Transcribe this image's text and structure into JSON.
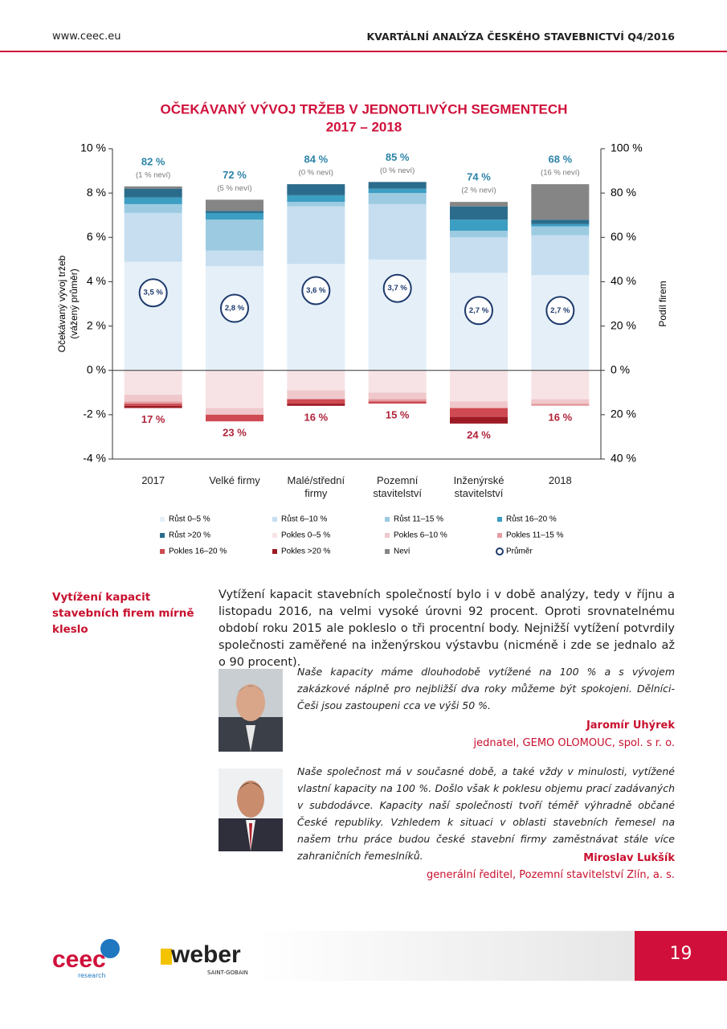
{
  "header": {
    "url": "www.ceec.eu",
    "title": "KVARTÁLNÍ ANALÝZA ČESKÉHO STAVEBNICTVÍ Q4/2016"
  },
  "chart_data": {
    "type": "stacked_bar",
    "title": "OČEKÁVANÝ VÝVOJ TRŽEB V JEDNOTLIVÝCH SEGMENTECH",
    "subtitle": "2017 – 2018",
    "ylabel": [
      "Očekávaný vývoj tržeb",
      "(vážený průměr)"
    ],
    "y2label": "Podíl firem",
    "categories": [
      "2017",
      "Velké firmy",
      "Malé/střední firmy",
      "Pozemní stavitelství",
      "Inženýrské stavitelství",
      "2018"
    ],
    "ylim": [
      -4,
      10
    ],
    "yticks": [
      {
        "value": -4,
        "label": "-4 %"
      },
      {
        "value": -2,
        "label": "-2 %"
      },
      {
        "value": 0,
        "label": "0 %"
      },
      {
        "value": 2,
        "label": "2 %"
      },
      {
        "value": 4,
        "label": "4 %"
      },
      {
        "value": 6,
        "label": "6 %"
      },
      {
        "value": 8,
        "label": "8 %"
      },
      {
        "value": 10,
        "label": "10 %"
      }
    ],
    "y2lim": [
      -40,
      100
    ],
    "y2ticks": [
      {
        "value": -40,
        "label": "40 %"
      },
      {
        "value": -20,
        "label": "20 %"
      },
      {
        "value": 0,
        "label": "0 %"
      },
      {
        "value": 20,
        "label": "20 %"
      },
      {
        "value": 40,
        "label": "40 %"
      },
      {
        "value": 60,
        "label": "60 %"
      },
      {
        "value": 80,
        "label": "80 %"
      },
      {
        "value": 100,
        "label": "100 %"
      }
    ],
    "series": [
      {
        "name": "Růst 0–5 %",
        "color": "#e4eff8",
        "axis": "y2",
        "values": [
          49,
          47,
          48,
          50,
          44,
          43
        ]
      },
      {
        "name": "Růst 6–10 %",
        "color": "#c6def0",
        "axis": "y2",
        "values": [
          22,
          7,
          26,
          25,
          16,
          18
        ]
      },
      {
        "name": "Růst 11–15 %",
        "color": "#9ccbe1",
        "axis": "y2",
        "values": [
          4,
          14,
          2,
          5,
          3,
          4
        ]
      },
      {
        "name": "Růst 16–20 %",
        "color": "#3c9ec2",
        "axis": "y2",
        "values": [
          3,
          3,
          3,
          2,
          5,
          1
        ]
      },
      {
        "name": "Růst >20 %",
        "color": "#2b6c8c",
        "axis": "y2",
        "values": [
          4,
          1,
          5,
          3,
          6,
          2
        ]
      },
      {
        "name": "Pokles 0–5 %",
        "color": "#f7e3e5",
        "axis": "y2",
        "values": [
          -11,
          -17,
          -9,
          -10,
          -14,
          -13
        ]
      },
      {
        "name": "Pokles 6–10 %",
        "color": "#f0c8cc",
        "axis": "y2",
        "values": [
          -3,
          -3,
          -4,
          -3,
          -3,
          -2
        ]
      },
      {
        "name": "Pokles 11–15 %",
        "color": "#e49ea3",
        "axis": "y2",
        "values": [
          -1,
          0,
          0,
          -1,
          0,
          -1
        ]
      },
      {
        "name": "Pokles 16–20 %",
        "color": "#cf4a52",
        "axis": "y2",
        "values": [
          -1,
          -3,
          -2,
          -1,
          -4,
          0
        ]
      },
      {
        "name": "Pokles >20 %",
        "color": "#9c1b25",
        "axis": "y2",
        "values": [
          -1,
          0,
          -1,
          0,
          -3,
          0
        ]
      },
      {
        "name": "Neví",
        "color": "#858585",
        "axis": "y2",
        "values": [
          1,
          5,
          0,
          0,
          2,
          16
        ]
      },
      {
        "name": "Průměr",
        "color": "#1d3a6c",
        "values": [
          3.5,
          2.8,
          3.6,
          3.7,
          2.7,
          2.7
        ],
        "value_labels": [
          "3,5 %",
          "2,8 %",
          "3,6 %",
          "3,7 %",
          "2,7 %",
          "2,7 %"
        ]
      }
    ],
    "growth_totals": [
      82,
      72,
      84,
      85,
      74,
      68
    ],
    "growth_labels": [
      "82 %",
      "72 %",
      "84 %",
      "85 %",
      "74 %",
      "68 %"
    ],
    "unknown_notes": [
      "(1 % neví)",
      "(5 % neví)",
      "(0 % neví)",
      "(0 % neví)",
      "(2 % neví)",
      "(16 % neví)"
    ],
    "decline_totals": [
      -17,
      -23,
      -16,
      -15,
      -24,
      -16
    ],
    "decline_labels": [
      "17 %",
      "23 %",
      "16 %",
      "15 %",
      "24 %",
      "16 %"
    ]
  },
  "section": {
    "heading": "Vytížení kapacit stavebních firem mírně kleslo",
    "body": "Vytížení kapacit stavebních společností bylo i v době analýzy, tedy v říjnu a listopadu 2016, na velmi vysoké úrovni 92 procent. Oproti srovnatelnému období roku 2015 ale pokleslo o tři procentní body. Nejnižší vytížení potvrdily společnosti zaměřené na inženýrskou výstavbu (nicméně i zde se jednalo až o 90 procent)."
  },
  "quotes": [
    {
      "text": "Naše kapacity máme dlouhodobě vytížené na 100 % a s vývojem zakázkové náplně pro nejbližší dva roky můžeme být spokojeni. Dělníci-Češi jsou zastoupeni cca ve výši 50 %.",
      "name": "Jaromír Uhýrek",
      "role": "jednatel, GEMO OLOMOUC, spol. s r. o."
    },
    {
      "text": "Naše společnost má v současné době, a také vždy v minulosti, vytížené vlastní kapacity na 100 %. Došlo však k poklesu objemu prací zadávaných v subdodávce. Kapacity naší společnosti tvoří téměř výhradně občané České republiky. Vzhledem k situaci v oblasti stavebních řemesel na našem trhu práce budou české stavební firmy zaměstnávat stále více zahraničních řemeslníků.",
      "name": "Miroslav Lukšík",
      "role": "generální ředitel, Pozemní stavitelství Zlín, a. s."
    }
  ],
  "footer": {
    "logo1": "ceec",
    "logo1_sub": "research",
    "logo2": "weber",
    "logo2_sub": "SAINT-GOBAIN",
    "page": "19"
  }
}
